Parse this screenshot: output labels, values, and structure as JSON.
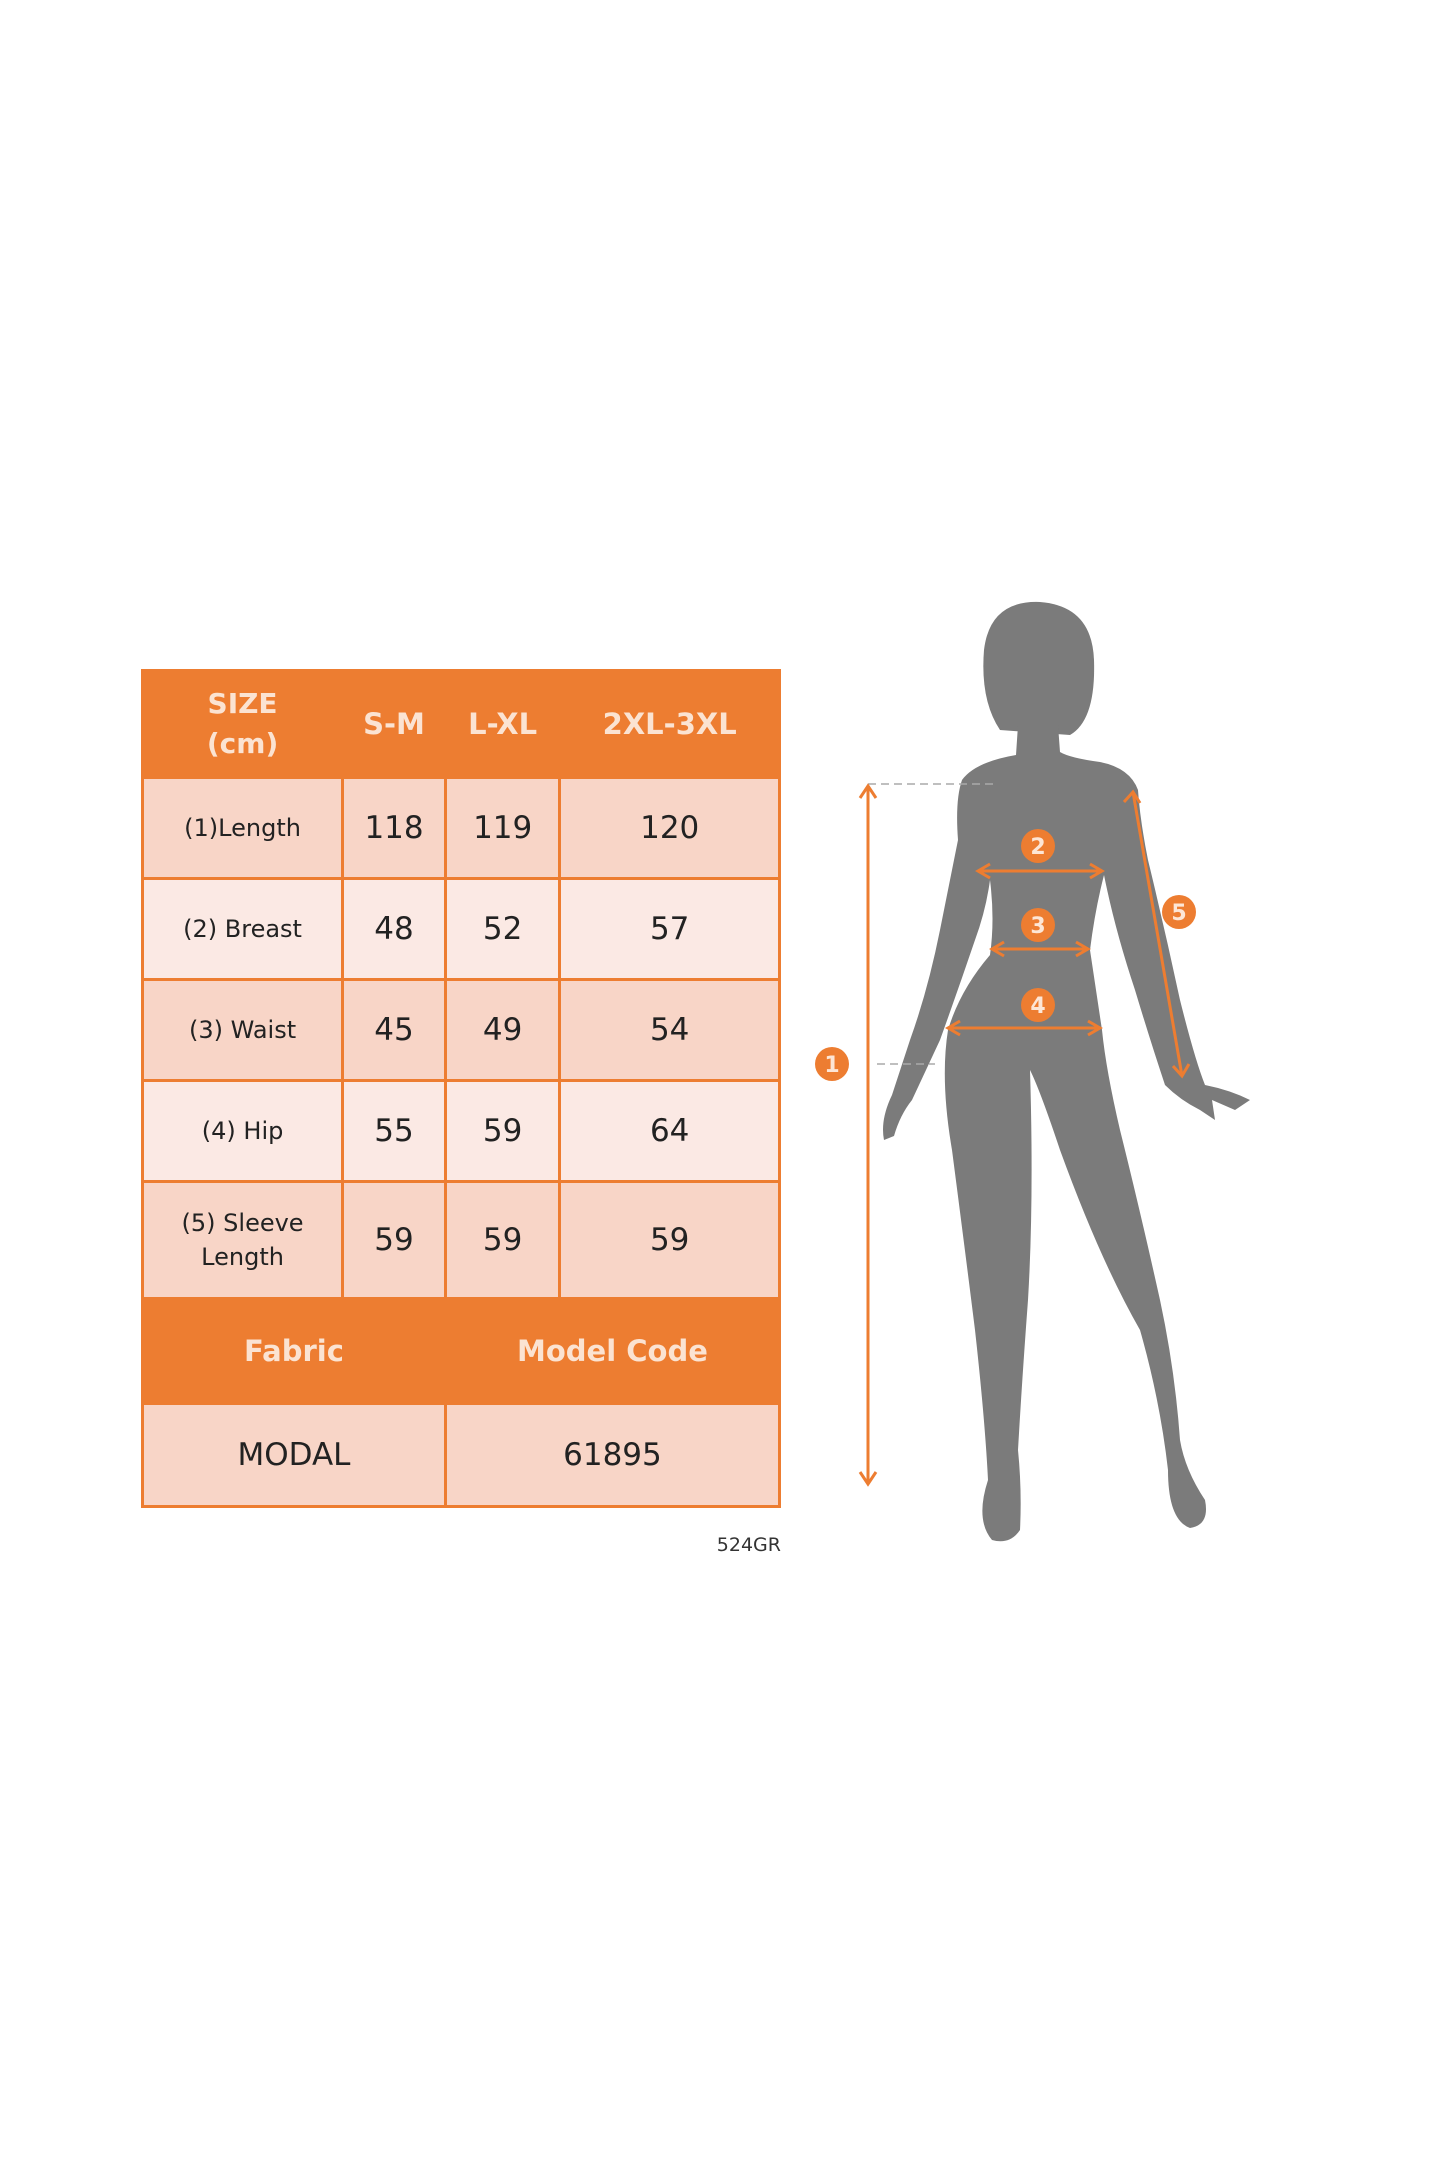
{
  "table": {
    "header": [
      "SIZE\n(cm)",
      "S-M",
      "L-XL",
      "2XL-3XL"
    ],
    "header_size_line1": "SIZE",
    "header_size_line2": "(cm)",
    "rows": [
      {
        "label": "(1)Length",
        "values": [
          "118",
          "119",
          "120"
        ]
      },
      {
        "label": "(2) Breast",
        "values": [
          "48",
          "52",
          "57"
        ]
      },
      {
        "label": "(3) Waist",
        "values": [
          "45",
          "49",
          "54"
        ]
      },
      {
        "label": "(4) Hip",
        "values": [
          "55",
          "59",
          "64"
        ]
      },
      {
        "label_line1": "(5) Sleeve",
        "label_line2": "Length",
        "values": [
          "59",
          "59",
          "59"
        ]
      }
    ],
    "footer_headers": [
      "Fabric",
      "Model Code"
    ],
    "footer_values": [
      "MODAL",
      "61895"
    ]
  },
  "code_note": "524GR",
  "figure": {
    "badges": [
      "1",
      "2",
      "3",
      "4",
      "5"
    ],
    "silhouette_color": "#7b7b7b",
    "accent_color": "#ed7d31"
  }
}
